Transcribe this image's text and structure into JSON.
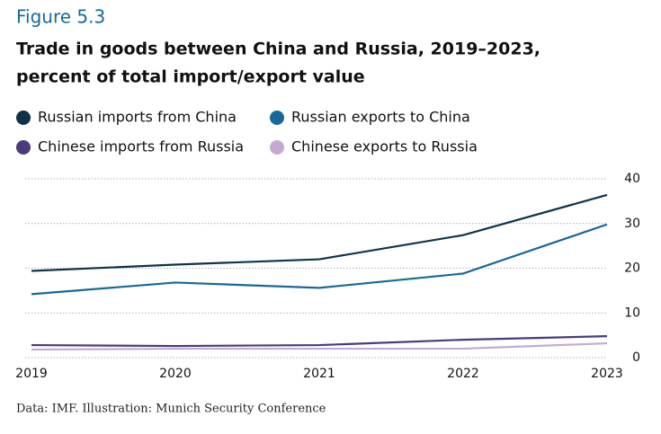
{
  "chart_data": {
    "type": "line",
    "figure_label": "Figure 5.3",
    "title": "Trade in goods between China and Russia, 2019–2023,",
    "subtitle": "percent of total import/export value",
    "categories": [
      "2019",
      "2020",
      "2021",
      "2022",
      "2023"
    ],
    "series": [
      {
        "name": "Russian imports from China",
        "color": "#0d3349",
        "values": [
          19.4,
          20.8,
          22,
          27.4,
          36.4
        ]
      },
      {
        "name": "Russian exports to China",
        "color": "#17699a",
        "values": [
          14.2,
          16.8,
          15.6,
          18.8,
          29.8
        ]
      },
      {
        "name": "Chinese imports from Russia",
        "color": "#4b3a7c",
        "values": [
          2.8,
          2.6,
          2.8,
          4,
          4.8
        ]
      },
      {
        "name": "Chinese exports to Russia",
        "color": "#c6a9d3",
        "values": [
          1.8,
          2,
          2,
          2,
          3.2
        ]
      }
    ],
    "ylim": [
      0,
      40
    ],
    "yticks": [
      0,
      10,
      20,
      30,
      40
    ],
    "grid": true,
    "source": "Data: IMF. Illustration: Munich Security Conference"
  }
}
